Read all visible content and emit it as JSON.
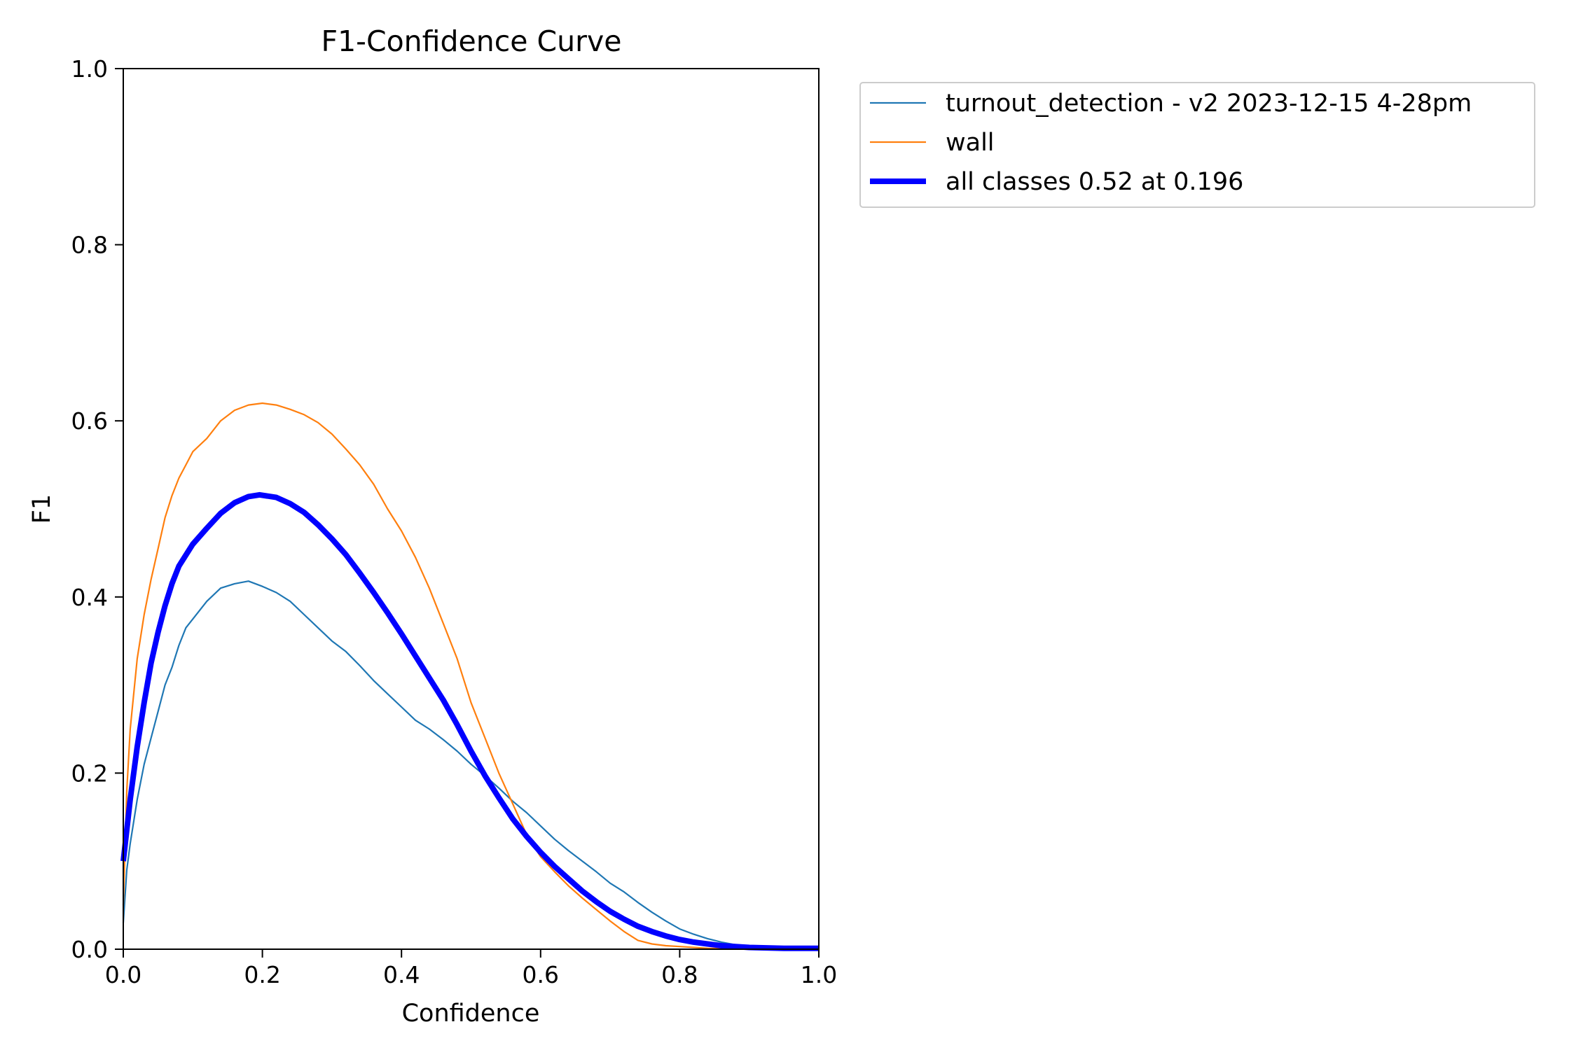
{
  "chart_data": {
    "type": "line",
    "title": "F1-Confidence Curve",
    "xlabel": "Confidence",
    "ylabel": "F1",
    "xlim": [
      0.0,
      1.0
    ],
    "ylim": [
      0.0,
      1.0
    ],
    "grid": false,
    "legend_position": "outside top-right",
    "x_ticks": [
      "0.0",
      "0.2",
      "0.4",
      "0.6",
      "0.8",
      "1.0"
    ],
    "y_ticks": [
      "0.0",
      "0.2",
      "0.4",
      "0.6",
      "0.8",
      "1.0"
    ],
    "series": [
      {
        "name": "turnout_detection - v2 2023-12-15 4-28pm",
        "color": "#1f77b4",
        "line_style": "thin",
        "x": [
          0.0,
          0.005,
          0.01,
          0.02,
          0.03,
          0.04,
          0.05,
          0.06,
          0.07,
          0.08,
          0.09,
          0.1,
          0.12,
          0.14,
          0.16,
          0.18,
          0.2,
          0.22,
          0.24,
          0.26,
          0.28,
          0.3,
          0.32,
          0.34,
          0.36,
          0.38,
          0.4,
          0.42,
          0.44,
          0.46,
          0.48,
          0.5,
          0.52,
          0.54,
          0.56,
          0.58,
          0.6,
          0.62,
          0.64,
          0.66,
          0.68,
          0.7,
          0.72,
          0.74,
          0.76,
          0.78,
          0.8,
          0.82,
          0.84,
          0.86,
          0.88,
          0.9,
          0.95,
          1.0
        ],
        "y": [
          0.03,
          0.09,
          0.12,
          0.17,
          0.21,
          0.24,
          0.27,
          0.3,
          0.32,
          0.345,
          0.365,
          0.375,
          0.395,
          0.41,
          0.415,
          0.418,
          0.412,
          0.405,
          0.395,
          0.38,
          0.365,
          0.35,
          0.338,
          0.322,
          0.305,
          0.29,
          0.275,
          0.26,
          0.25,
          0.238,
          0.225,
          0.21,
          0.197,
          0.183,
          0.168,
          0.155,
          0.14,
          0.125,
          0.112,
          0.1,
          0.088,
          0.075,
          0.065,
          0.053,
          0.042,
          0.032,
          0.023,
          0.017,
          0.012,
          0.008,
          0.005,
          0.003,
          0.001,
          0.0
        ]
      },
      {
        "name": "wall",
        "color": "#ff7f0e",
        "line_style": "thin",
        "x": [
          0.0,
          0.005,
          0.01,
          0.02,
          0.03,
          0.04,
          0.05,
          0.06,
          0.07,
          0.08,
          0.09,
          0.1,
          0.12,
          0.14,
          0.16,
          0.18,
          0.2,
          0.22,
          0.24,
          0.26,
          0.28,
          0.3,
          0.32,
          0.34,
          0.36,
          0.38,
          0.4,
          0.42,
          0.44,
          0.46,
          0.48,
          0.5,
          0.52,
          0.54,
          0.56,
          0.58,
          0.6,
          0.62,
          0.64,
          0.66,
          0.68,
          0.7,
          0.72,
          0.74,
          0.76,
          0.78,
          0.8,
          0.84,
          0.9,
          1.0
        ],
        "y": [
          0.05,
          0.18,
          0.25,
          0.33,
          0.38,
          0.42,
          0.455,
          0.49,
          0.515,
          0.535,
          0.55,
          0.565,
          0.58,
          0.6,
          0.612,
          0.618,
          0.62,
          0.618,
          0.613,
          0.607,
          0.598,
          0.585,
          0.568,
          0.55,
          0.528,
          0.5,
          0.475,
          0.445,
          0.41,
          0.37,
          0.33,
          0.28,
          0.24,
          0.2,
          0.165,
          0.13,
          0.105,
          0.088,
          0.072,
          0.058,
          0.045,
          0.032,
          0.02,
          0.01,
          0.006,
          0.004,
          0.003,
          0.001,
          0.0,
          0.0
        ]
      },
      {
        "name": "all classes 0.52 at 0.196",
        "color": "#0000ff",
        "line_style": "thick",
        "x": [
          0.0,
          0.01,
          0.02,
          0.03,
          0.04,
          0.05,
          0.06,
          0.07,
          0.08,
          0.1,
          0.12,
          0.14,
          0.16,
          0.18,
          0.196,
          0.22,
          0.24,
          0.26,
          0.28,
          0.3,
          0.32,
          0.34,
          0.36,
          0.38,
          0.4,
          0.42,
          0.44,
          0.46,
          0.48,
          0.5,
          0.52,
          0.54,
          0.56,
          0.58,
          0.6,
          0.62,
          0.64,
          0.66,
          0.68,
          0.7,
          0.72,
          0.74,
          0.76,
          0.78,
          0.8,
          0.82,
          0.84,
          0.86,
          0.88,
          0.9,
          0.95,
          1.0
        ],
        "y": [
          0.1,
          0.17,
          0.23,
          0.28,
          0.325,
          0.36,
          0.39,
          0.415,
          0.435,
          0.46,
          0.478,
          0.495,
          0.507,
          0.514,
          0.516,
          0.513,
          0.506,
          0.496,
          0.482,
          0.466,
          0.448,
          0.427,
          0.405,
          0.382,
          0.358,
          0.333,
          0.308,
          0.283,
          0.255,
          0.225,
          0.197,
          0.172,
          0.148,
          0.128,
          0.11,
          0.094,
          0.08,
          0.066,
          0.054,
          0.043,
          0.034,
          0.026,
          0.02,
          0.015,
          0.011,
          0.008,
          0.006,
          0.004,
          0.003,
          0.002,
          0.001,
          0.001
        ]
      }
    ]
  }
}
